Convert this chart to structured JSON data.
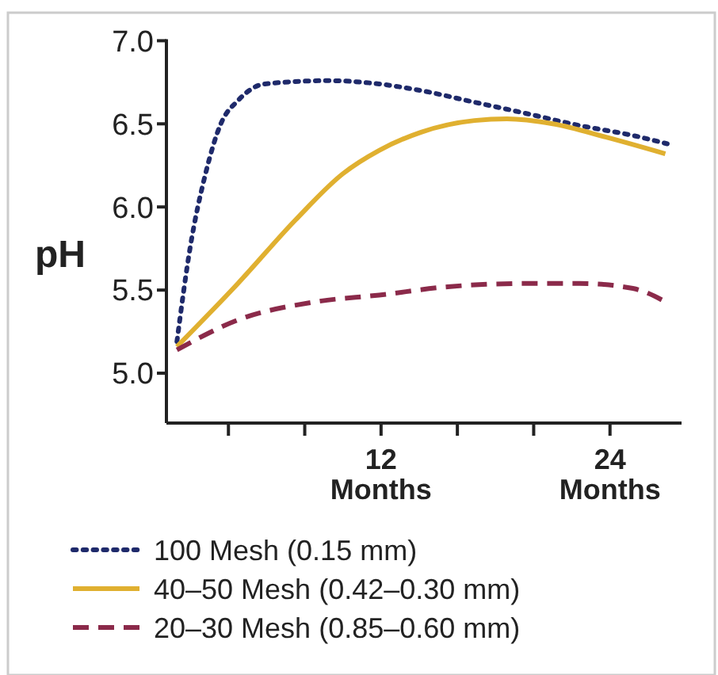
{
  "chart_data": {
    "type": "line",
    "ylabel": "pH",
    "xlim": [
      0.75,
      27.75
    ],
    "ylim": [
      4.7,
      7.0
    ],
    "xticks": [
      {
        "value": 4,
        "label": null
      },
      {
        "value": 8,
        "label": null
      },
      {
        "value": 12,
        "label": "12\nMonths"
      },
      {
        "value": 16,
        "label": null
      },
      {
        "value": 20,
        "label": null
      },
      {
        "value": 24,
        "label": "24\nMonths"
      }
    ],
    "yticks": [
      {
        "value": 5.0,
        "label": "5.0"
      },
      {
        "value": 5.5,
        "label": "5.5"
      },
      {
        "value": 6.0,
        "label": "6.0"
      },
      {
        "value": 6.5,
        "label": "6.5"
      },
      {
        "value": 7.0,
        "label": "7.0"
      }
    ],
    "grid": false,
    "legend": "bottom",
    "marker": "none",
    "series": [
      {
        "name": "100 Mesh (0.15 mm)",
        "color": "#1f2a6b",
        "line_style": "dotted",
        "x": [
          1.3,
          2.0,
          2.8,
          3.6,
          4.5,
          5.9,
          9.2,
          11.9,
          14.1,
          16.9,
          19.7,
          22.4,
          25.2,
          27.0
        ],
        "values": [
          5.19,
          5.76,
          6.2,
          6.5,
          6.64,
          6.74,
          6.76,
          6.74,
          6.7,
          6.63,
          6.56,
          6.49,
          6.43,
          6.38
        ]
      },
      {
        "name": "40–50 Mesh (0.42–0.30 mm)",
        "color": "#e0b030",
        "line_style": "solid",
        "x": [
          1.3,
          4.5,
          7.5,
          10.0,
          11.9,
          14.1,
          16.9,
          18.6,
          21.0,
          23.8,
          26.9
        ],
        "values": [
          5.16,
          5.54,
          5.92,
          6.2,
          6.34,
          6.45,
          6.52,
          6.53,
          6.5,
          6.42,
          6.32
        ]
      },
      {
        "name": "20–30 Mesh (0.85–0.60 mm)",
        "color": "#8b2a4a",
        "line_style": "dashed",
        "x": [
          1.3,
          4.5,
          8.6,
          11.9,
          15.5,
          19.7,
          22.4,
          25.2,
          26.9
        ],
        "values": [
          5.14,
          5.32,
          5.43,
          5.47,
          5.52,
          5.54,
          5.54,
          5.51,
          5.43
        ]
      }
    ]
  }
}
